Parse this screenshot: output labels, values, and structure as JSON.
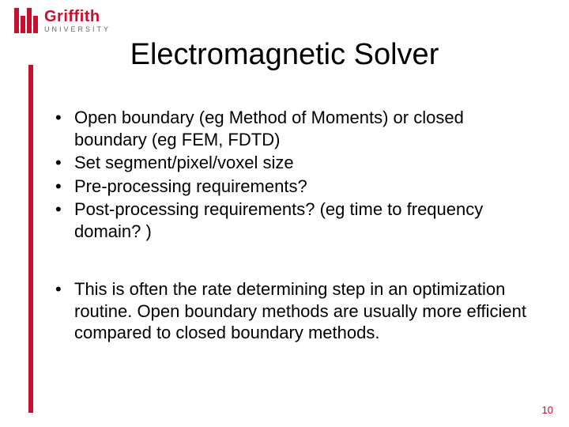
{
  "logo": {
    "name": "Griffith",
    "sub": "UNIVERSITY",
    "brand_color": "#c8102e"
  },
  "title": "Electromagnetic Solver",
  "bullets_group1": [
    "Open boundary (eg Method of Moments) or closed boundary (eg FEM, FDTD)",
    "Set segment/pixel/voxel size",
    "Pre-processing requirements?",
    "Post-processing requirements? (eg time to frequency domain? )"
  ],
  "bullets_group2": [
    "This is often the rate determining step in an optimization routine. Open boundary methods are usually more efficient compared to closed boundary methods."
  ],
  "page_number": "10",
  "style": {
    "title_fontsize": 38,
    "body_fontsize": 22,
    "accent_color": "#c8102e",
    "background_color": "#ffffff",
    "text_color": "#000000"
  }
}
